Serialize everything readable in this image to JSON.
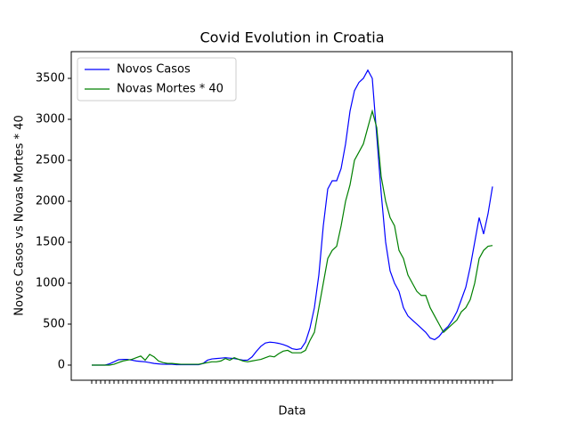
{
  "chart_data": {
    "type": "line",
    "title": "Covid Evolution in Croatia",
    "x_label": "Data",
    "y_label": "Novos Casos vs Novas Mortes * 40",
    "categories": [
      null,
      null,
      null,
      null,
      null,
      null,
      null,
      null,
      null,
      null,
      null,
      null,
      null,
      null,
      null,
      null,
      null,
      null,
      null,
      null,
      null,
      null,
      null,
      null,
      null,
      null,
      null,
      null,
      null,
      null,
      null,
      null,
      null,
      null,
      null,
      null,
      null,
      null,
      null,
      null,
      null,
      null,
      null,
      null,
      null,
      null,
      null,
      null,
      null,
      null,
      null,
      null,
      null,
      null,
      null,
      null,
      null,
      null,
      null,
      null,
      null,
      null,
      null,
      null,
      null,
      null,
      null,
      null,
      null,
      null,
      null,
      null,
      null,
      null,
      null,
      null,
      null,
      null,
      null,
      null,
      null,
      null,
      null,
      null,
      null,
      null,
      null,
      null,
      null,
      null,
      null
    ],
    "series": [
      {
        "name": "Novos Casos",
        "color": "#0000ff",
        "values": [
          0,
          0,
          0,
          0,
          15,
          40,
          65,
          70,
          70,
          60,
          50,
          45,
          40,
          30,
          20,
          15,
          10,
          10,
          10,
          5,
          5,
          5,
          5,
          5,
          5,
          20,
          60,
          75,
          80,
          85,
          90,
          85,
          80,
          70,
          60,
          60,
          100,
          170,
          230,
          270,
          280,
          275,
          265,
          250,
          230,
          200,
          190,
          200,
          280,
          450,
          700,
          1100,
          1700,
          2150,
          2250,
          2250,
          2400,
          2700,
          3100,
          3350,
          3450,
          3500,
          3600,
          3500,
          2800,
          2100,
          1500,
          1150,
          1000,
          900,
          700,
          600,
          550,
          500,
          450,
          400,
          330,
          310,
          350,
          420,
          470,
          550,
          650,
          800,
          950,
          1200,
          1500,
          1800,
          1600,
          1850,
          2180
        ]
      },
      {
        "name": "Novas Mortes * 40",
        "color": "#008000",
        "values": [
          0,
          0,
          0,
          0,
          0,
          10,
          30,
          50,
          60,
          70,
          90,
          110,
          60,
          130,
          100,
          50,
          30,
          20,
          20,
          15,
          10,
          10,
          10,
          10,
          10,
          20,
          30,
          40,
          40,
          50,
          80,
          60,
          90,
          70,
          50,
          40,
          50,
          60,
          70,
          90,
          110,
          100,
          140,
          170,
          180,
          150,
          150,
          150,
          180,
          300,
          400,
          700,
          1000,
          1300,
          1400,
          1450,
          1700,
          2000,
          2200,
          2500,
          2600,
          2700,
          2900,
          3100,
          2900,
          2300,
          2000,
          1800,
          1700,
          1400,
          1300,
          1100,
          1000,
          900,
          850,
          850,
          700,
          600,
          500,
          400,
          450,
          500,
          550,
          650,
          700,
          800,
          1000,
          1300,
          1400,
          1450,
          1460
        ]
      }
    ],
    "ylim": [
      -185,
      3826
    ],
    "yticks": [
      0,
      500,
      1000,
      1500,
      2000,
      2500,
      3000,
      3500
    ],
    "legend": "upper left"
  }
}
